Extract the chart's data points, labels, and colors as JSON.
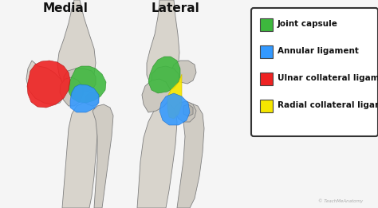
{
  "title_left": "Medial",
  "title_right": "Lateral",
  "background_color": "#f5f5f5",
  "legend_items": [
    {
      "color": "#3db83d",
      "label": "Joint capsule"
    },
    {
      "color": "#3399ff",
      "label": "Annular ligament"
    },
    {
      "color": "#ee2222",
      "label": "Ulnar collateral ligament"
    },
    {
      "color": "#f5e600",
      "label": "Radial collateral ligament"
    }
  ],
  "title_fontsize": 11,
  "legend_fontsize": 7.5,
  "figsize": [
    4.74,
    2.61
  ],
  "dpi": 100,
  "bone_color": "#d8d4cc",
  "bone_dark": "#b0aba0",
  "bone_edge": "#808080",
  "bone_lw": 0.6
}
